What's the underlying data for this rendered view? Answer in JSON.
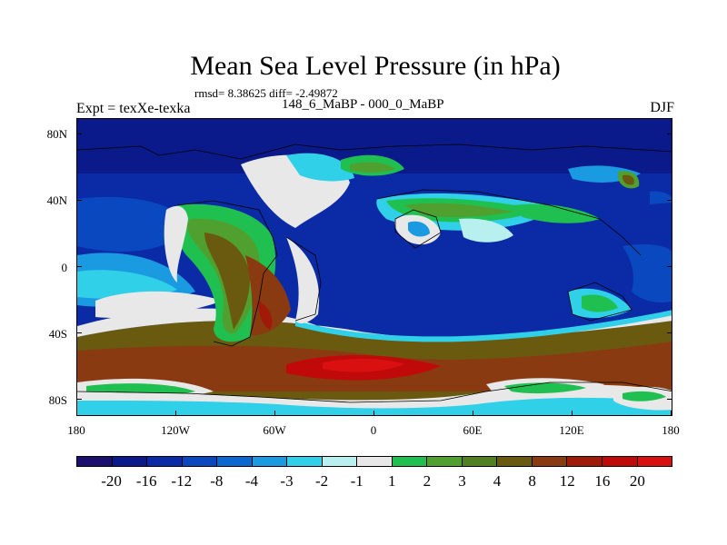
{
  "title": "Mean Sea Level Pressure (in hPa)",
  "stats": "rmsd= 8.38625 diff= -2.49872",
  "expt": "Expt = texXe-texka",
  "period": "148_6_MaBP - 000_0_MaBP",
  "season": "DJF",
  "map": {
    "lat_labels": [
      "80N",
      "40N",
      "0",
      "40S",
      "80S"
    ],
    "lat_values": [
      80,
      40,
      0,
      -40,
      -80
    ],
    "lon_labels": [
      "180",
      "120W",
      "60W",
      "0",
      "60E",
      "120E",
      "180"
    ],
    "lon_values": [
      -180,
      -120,
      -60,
      0,
      60,
      120,
      180
    ],
    "lat_range": [
      -90,
      90
    ],
    "lon_range": [
      -180,
      180
    ]
  },
  "colorbar": {
    "labels": [
      "-20",
      "-16",
      "-12",
      "-8",
      "-4",
      "-3",
      "-2",
      "-1",
      "1",
      "2",
      "3",
      "4",
      "8",
      "12",
      "16",
      "20"
    ],
    "colors": [
      "#1a0f6e",
      "#0a1a8a",
      "#0a2aa6",
      "#0a48c0",
      "#0a68d0",
      "#1a9ae0",
      "#30d0e8",
      "#b8f0f0",
      "#e8e8e8",
      "#20c050",
      "#50a030",
      "#508020",
      "#6a5a10",
      "#8a3a10",
      "#a01a0a",
      "#c00a0a",
      "#d81010"
    ]
  }
}
